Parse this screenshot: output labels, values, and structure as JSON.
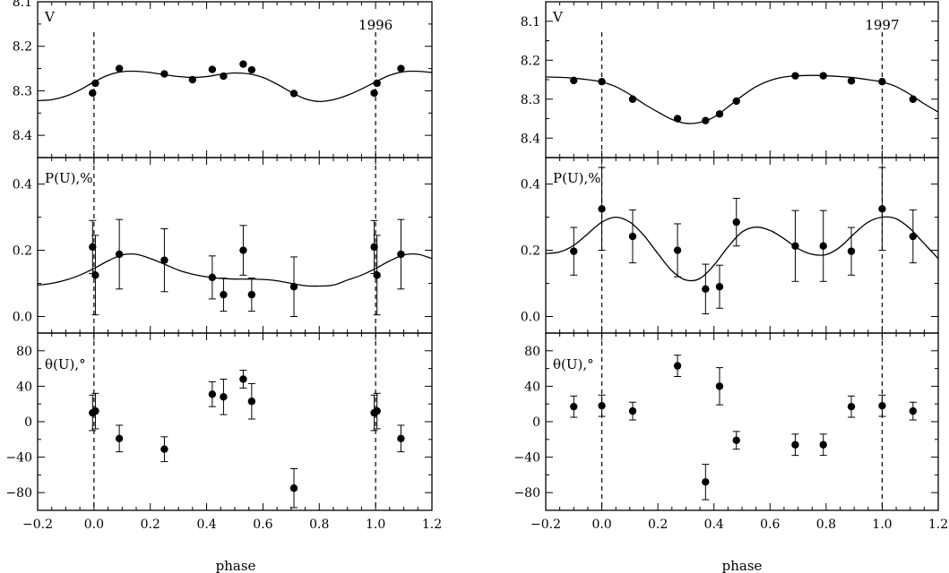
{
  "xlabel": "phase",
  "chart_data": [
    {
      "type": "scatter",
      "year": "1996",
      "xlim": [
        -0.2,
        1.2
      ],
      "x_ticks": [
        -0.2,
        0.0,
        0.2,
        0.4,
        0.6,
        0.8,
        1.0,
        1.2
      ],
      "x_tick_labels": [
        "−0.2",
        "0.0",
        "0.2",
        "0.4",
        "0.6",
        "0.8",
        "1.0",
        "1.2"
      ],
      "dashed_lines": [
        0.0,
        1.0
      ],
      "panels": [
        {
          "key": "V",
          "label": "V",
          "ylim": [
            8.1,
            8.45
          ],
          "inverted": true,
          "y_ticks": [
            8.1,
            8.2,
            8.3,
            8.4
          ],
          "y_tick_labels": [
            "8.1",
            "8.2",
            "8.3",
            "8.4"
          ],
          "points": [
            {
              "x": -0.005,
              "y": 8.305
            },
            {
              "x": 0.005,
              "y": 8.283
            },
            {
              "x": 0.09,
              "y": 8.25
            },
            {
              "x": 0.25,
              "y": 8.262
            },
            {
              "x": 0.35,
              "y": 8.275
            },
            {
              "x": 0.42,
              "y": 8.252
            },
            {
              "x": 0.46,
              "y": 8.267
            },
            {
              "x": 0.53,
              "y": 8.24
            },
            {
              "x": 0.56,
              "y": 8.253
            },
            {
              "x": 0.71,
              "y": 8.306
            },
            {
              "x": 0.995,
              "y": 8.305
            },
            {
              "x": 1.005,
              "y": 8.283
            },
            {
              "x": 1.09,
              "y": 8.25
            }
          ],
          "curve": {
            "x": [
              -0.2,
              -0.15,
              -0.1,
              -0.05,
              0.0,
              0.05,
              0.1,
              0.15,
              0.2,
              0.25,
              0.3,
              0.35,
              0.4,
              0.45,
              0.5,
              0.55,
              0.6,
              0.65,
              0.7,
              0.75,
              0.8,
              0.85,
              0.9,
              0.95,
              1.0,
              1.05,
              1.1,
              1.15,
              1.2
            ],
            "y": [
              8.322,
              8.32,
              8.312,
              8.298,
              8.28,
              8.265,
              8.257,
              8.256,
              8.259,
              8.264,
              8.268,
              8.27,
              8.268,
              8.263,
              8.26,
              8.262,
              8.27,
              8.285,
              8.303,
              8.318,
              8.324,
              8.32,
              8.31,
              8.296,
              8.28,
              8.265,
              8.257,
              8.256,
              8.259
            ]
          }
        },
        {
          "key": "P",
          "label": "P(U),%",
          "ylim": [
            -0.05,
            0.48
          ],
          "inverted": false,
          "y_ticks": [
            0.0,
            0.2,
            0.4
          ],
          "y_tick_labels": [
            "0.0",
            "0.2",
            "0.4"
          ],
          "points": [
            {
              "x": -0.005,
              "y": 0.21,
              "err": 0.08
            },
            {
              "x": 0.005,
              "y": 0.125,
              "err": 0.12
            },
            {
              "x": 0.09,
              "y": 0.188,
              "err": 0.105
            },
            {
              "x": 0.25,
              "y": 0.17,
              "err": 0.095
            },
            {
              "x": 0.42,
              "y": 0.118,
              "err": 0.065
            },
            {
              "x": 0.46,
              "y": 0.066,
              "err": 0.05
            },
            {
              "x": 0.53,
              "y": 0.2,
              "err": 0.075
            },
            {
              "x": 0.56,
              "y": 0.066,
              "err": 0.05
            },
            {
              "x": 0.71,
              "y": 0.09,
              "err": 0.09
            },
            {
              "x": 0.995,
              "y": 0.21,
              "err": 0.08
            },
            {
              "x": 1.005,
              "y": 0.125,
              "err": 0.12
            },
            {
              "x": 1.09,
              "y": 0.188,
              "err": 0.105
            }
          ],
          "curve": {
            "x": [
              -0.2,
              -0.15,
              -0.1,
              -0.05,
              0.0,
              0.05,
              0.1,
              0.15,
              0.2,
              0.25,
              0.3,
              0.35,
              0.4,
              0.45,
              0.5,
              0.55,
              0.6,
              0.65,
              0.7,
              0.75,
              0.8,
              0.85,
              0.9,
              0.95,
              1.0,
              1.05,
              1.1,
              1.15,
              1.2
            ],
            "y": [
              0.095,
              0.1,
              0.11,
              0.125,
              0.145,
              0.168,
              0.186,
              0.188,
              0.175,
              0.158,
              0.14,
              0.128,
              0.12,
              0.115,
              0.113,
              0.113,
              0.112,
              0.108,
              0.1,
              0.093,
              0.092,
              0.095,
              0.11,
              0.125,
              0.145,
              0.168,
              0.186,
              0.188,
              0.175
            ]
          }
        },
        {
          "key": "theta",
          "label": "θ(U),°",
          "ylim": [
            -100,
            100
          ],
          "inverted": false,
          "y_ticks": [
            -80,
            -40,
            0,
            40,
            80
          ],
          "y_tick_labels": [
            "−80",
            "−40",
            "0",
            "40",
            "80"
          ],
          "points": [
            {
              "x": -0.005,
              "y": 10,
              "err": 20
            },
            {
              "x": 0.005,
              "y": 12,
              "err": 20
            },
            {
              "x": 0.09,
              "y": -19,
              "err": 15
            },
            {
              "x": 0.25,
              "y": -31,
              "err": 14
            },
            {
              "x": 0.42,
              "y": 31,
              "err": 14
            },
            {
              "x": 0.46,
              "y": 28,
              "err": 20
            },
            {
              "x": 0.53,
              "y": 48,
              "err": 10
            },
            {
              "x": 0.56,
              "y": 23,
              "err": 20
            },
            {
              "x": 0.71,
              "y": -75,
              "err": 22
            },
            {
              "x": 0.995,
              "y": 10,
              "err": 20
            },
            {
              "x": 1.005,
              "y": 12,
              "err": 20
            },
            {
              "x": 1.09,
              "y": -19,
              "err": 15
            }
          ]
        }
      ]
    },
    {
      "type": "scatter",
      "year": "1997",
      "xlim": [
        -0.2,
        1.2
      ],
      "x_ticks": [
        -0.2,
        0.0,
        0.2,
        0.4,
        0.6,
        0.8,
        1.0,
        1.2
      ],
      "x_tick_labels": [
        "−0.2",
        "0.0",
        "0.2",
        "0.4",
        "0.6",
        "0.8",
        "1.0",
        "1.2"
      ],
      "dashed_lines": [
        0.0,
        1.0
      ],
      "panels": [
        {
          "key": "V",
          "label": "V",
          "ylim": [
            8.05,
            8.45
          ],
          "inverted": true,
          "y_ticks": [
            8.1,
            8.2,
            8.3,
            8.4
          ],
          "y_tick_labels": [
            "8.1",
            "8.2",
            "8.3",
            "8.4"
          ],
          "points": [
            {
              "x": -0.1,
              "y": 8.252
            },
            {
              "x": 0.0,
              "y": 8.255
            },
            {
              "x": 0.11,
              "y": 8.3
            },
            {
              "x": 0.27,
              "y": 8.35
            },
            {
              "x": 0.37,
              "y": 8.355
            },
            {
              "x": 0.42,
              "y": 8.338
            },
            {
              "x": 0.48,
              "y": 8.305
            },
            {
              "x": 0.69,
              "y": 8.24
            },
            {
              "x": 0.79,
              "y": 8.24
            },
            {
              "x": 0.89,
              "y": 8.253
            },
            {
              "x": 1.0,
              "y": 8.255
            },
            {
              "x": 1.11,
              "y": 8.3
            }
          ],
          "curve": {
            "x": [
              -0.2,
              -0.15,
              -0.1,
              -0.05,
              0.0,
              0.05,
              0.1,
              0.15,
              0.2,
              0.25,
              0.3,
              0.35,
              0.4,
              0.45,
              0.5,
              0.55,
              0.6,
              0.65,
              0.7,
              0.75,
              0.8,
              0.85,
              0.9,
              0.95,
              1.0,
              1.05,
              1.1,
              1.15,
              1.2
            ],
            "y": [
              8.243,
              8.244,
              8.246,
              8.25,
              8.256,
              8.268,
              8.288,
              8.312,
              8.333,
              8.352,
              8.362,
              8.36,
              8.346,
              8.32,
              8.292,
              8.268,
              8.252,
              8.243,
              8.24,
              8.239,
              8.24,
              8.242,
              8.245,
              8.25,
              8.256,
              8.268,
              8.288,
              8.312,
              8.333
            ]
          }
        },
        {
          "key": "P",
          "label": "P(U),%",
          "ylim": [
            -0.05,
            0.48
          ],
          "inverted": false,
          "y_ticks": [
            0.0,
            0.2,
            0.4
          ],
          "y_tick_labels": [
            "0.0",
            "0.2",
            "0.4"
          ],
          "points": [
            {
              "x": -0.1,
              "y": 0.197,
              "err": 0.072
            },
            {
              "x": 0.0,
              "y": 0.325,
              "err": 0.125
            },
            {
              "x": 0.11,
              "y": 0.242,
              "err": 0.08
            },
            {
              "x": 0.27,
              "y": 0.2,
              "err": 0.08
            },
            {
              "x": 0.37,
              "y": 0.083,
              "err": 0.075
            },
            {
              "x": 0.42,
              "y": 0.09,
              "err": 0.065
            },
            {
              "x": 0.48,
              "y": 0.285,
              "err": 0.072
            },
            {
              "x": 0.69,
              "y": 0.213,
              "err": 0.107
            },
            {
              "x": 0.79,
              "y": 0.213,
              "err": 0.107
            },
            {
              "x": 0.89,
              "y": 0.197,
              "err": 0.072
            },
            {
              "x": 1.0,
              "y": 0.325,
              "err": 0.125
            },
            {
              "x": 1.11,
              "y": 0.242,
              "err": 0.08
            }
          ],
          "curve": {
            "x": [
              -0.2,
              -0.15,
              -0.1,
              -0.05,
              0.0,
              0.05,
              0.1,
              0.15,
              0.2,
              0.25,
              0.3,
              0.35,
              0.4,
              0.45,
              0.5,
              0.55,
              0.6,
              0.65,
              0.7,
              0.75,
              0.8,
              0.85,
              0.9,
              0.95,
              1.0,
              1.05,
              1.1,
              1.15,
              1.2
            ],
            "y": [
              0.19,
              0.195,
              0.215,
              0.25,
              0.285,
              0.3,
              0.285,
              0.245,
              0.19,
              0.138,
              0.11,
              0.115,
              0.155,
              0.21,
              0.255,
              0.27,
              0.26,
              0.235,
              0.205,
              0.188,
              0.187,
              0.21,
              0.25,
              0.285,
              0.3,
              0.295,
              0.265,
              0.22,
              0.175
            ]
          }
        },
        {
          "key": "theta",
          "label": "θ(U),°",
          "ylim": [
            -100,
            100
          ],
          "inverted": false,
          "y_ticks": [
            -80,
            -40,
            0,
            40,
            80
          ],
          "y_tick_labels": [
            "−80",
            "−40",
            "0",
            "40",
            "80"
          ],
          "points": [
            {
              "x": -0.1,
              "y": 17,
              "err": 12
            },
            {
              "x": 0.0,
              "y": 18,
              "err": 12
            },
            {
              "x": 0.11,
              "y": 12,
              "err": 10
            },
            {
              "x": 0.27,
              "y": 63,
              "err": 12
            },
            {
              "x": 0.37,
              "y": -68,
              "err": 20
            },
            {
              "x": 0.42,
              "y": 40,
              "err": 21
            },
            {
              "x": 0.48,
              "y": -21,
              "err": 10
            },
            {
              "x": 0.69,
              "y": -26,
              "err": 12
            },
            {
              "x": 0.79,
              "y": -26,
              "err": 12
            },
            {
              "x": 0.89,
              "y": 17,
              "err": 12
            },
            {
              "x": 1.0,
              "y": 18,
              "err": 12
            },
            {
              "x": 1.11,
              "y": 12,
              "err": 10
            }
          ]
        }
      ]
    }
  ]
}
